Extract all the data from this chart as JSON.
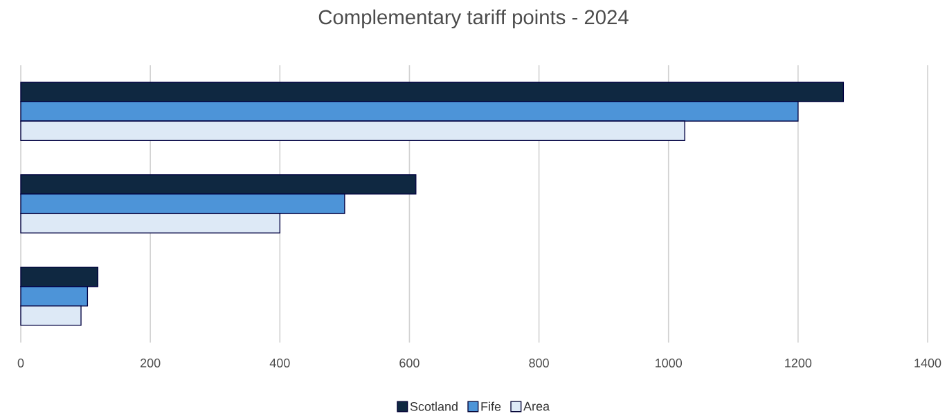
{
  "chart_data": {
    "type": "bar",
    "orientation": "horizontal",
    "title": "Complementary tariff points - 2024",
    "categories": [
      null,
      null,
      null
    ],
    "series": [
      {
        "name": "Scotland",
        "color": "#0f2841",
        "values": [
          1270,
          610,
          119
        ]
      },
      {
        "name": "Fife",
        "color": "#4d94d8",
        "values": [
          1200,
          500,
          103
        ]
      },
      {
        "name": "Area",
        "color": "#dde9f6",
        "values": [
          1025,
          400,
          93
        ]
      }
    ],
    "xlim": [
      0,
      1400
    ],
    "xticks": [
      0,
      200,
      400,
      600,
      800,
      1000,
      1200,
      1400
    ],
    "grid": "x",
    "legend": "bottom"
  }
}
